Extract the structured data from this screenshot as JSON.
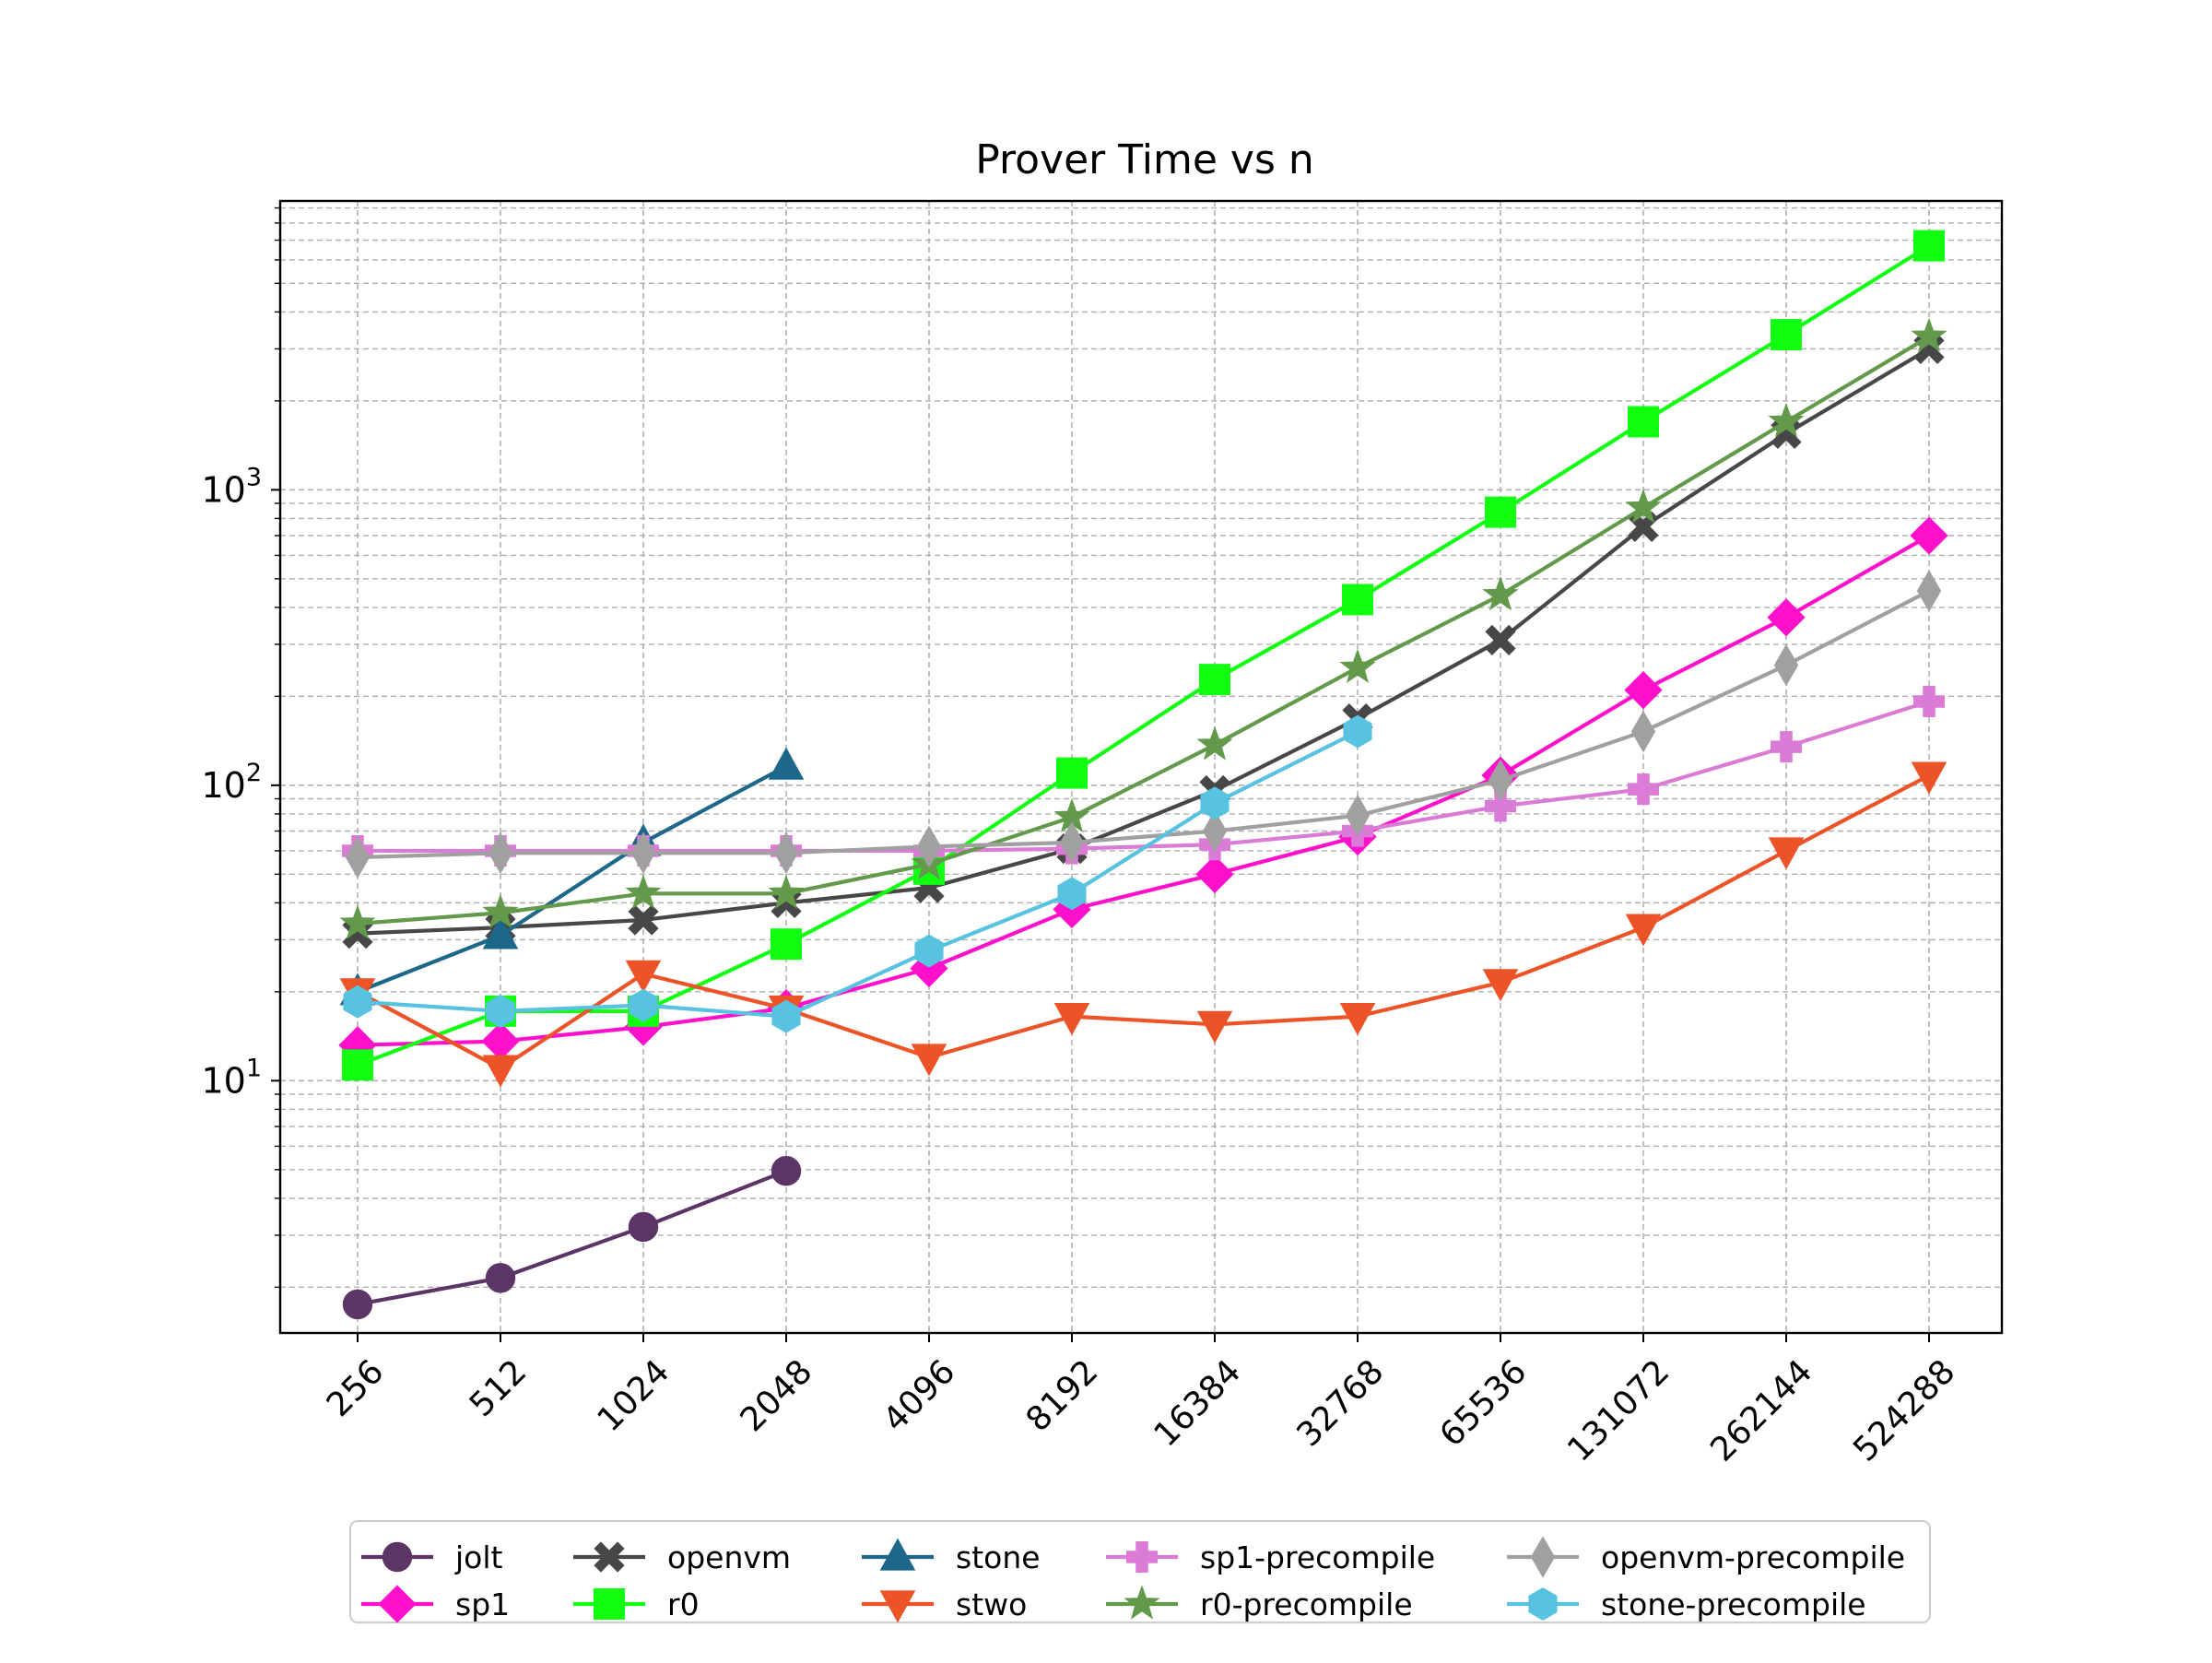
{
  "chart_data": {
    "type": "line",
    "title": "Prover Time vs n",
    "xlabel": "",
    "ylabel": "",
    "yscale": "log",
    "ylim": [
      1.4,
      9500
    ],
    "grid": true,
    "legend_location": "bottom-center, outside plot, 5 columns",
    "x": [
      "256",
      "512",
      "1024",
      "2048",
      "4096",
      "8192",
      "16384",
      "32768",
      "65536",
      "131072",
      "262144",
      "524288"
    ],
    "y_tick_labels": [
      {
        "value": 10,
        "base": "10",
        "exp": "1"
      },
      {
        "value": 100,
        "base": "10",
        "exp": "2"
      },
      {
        "value": 1000,
        "base": "10",
        "exp": "3"
      }
    ],
    "series": [
      {
        "name": "jolt",
        "color": "#5c3566",
        "marker": "circle",
        "values": [
          1.75,
          2.15,
          3.2,
          4.95,
          null,
          null,
          null,
          null,
          null,
          null,
          null,
          null
        ]
      },
      {
        "name": "sp1",
        "color": "#ff11cc",
        "marker": "diamond",
        "values": [
          13.2,
          13.6,
          15.2,
          17.6,
          24,
          38,
          50,
          67,
          108,
          210,
          370,
          700
        ]
      },
      {
        "name": "openvm",
        "color": "#474747",
        "marker": "x",
        "values": [
          31.5,
          33,
          35,
          40,
          45,
          61,
          96,
          168,
          310,
          750,
          1550,
          3000
        ]
      },
      {
        "name": "r0",
        "color": "#11ff11",
        "marker": "square",
        "values": [
          11.3,
          17.2,
          17.2,
          29,
          52,
          110,
          228,
          425,
          840,
          1700,
          3350,
          6700
        ]
      },
      {
        "name": "stone",
        "color": "#1c678a",
        "marker": "triangle-up",
        "values": [
          20,
          31,
          64,
          116,
          null,
          null,
          null,
          null,
          null,
          null,
          null,
          null
        ]
      },
      {
        "name": "stwo",
        "color": "#ec5428",
        "marker": "triangle-down",
        "values": [
          20,
          11,
          23,
          17.5,
          12,
          16.5,
          15.5,
          16.5,
          21.5,
          33,
          60,
          108
        ]
      },
      {
        "name": "sp1-precompile",
        "color": "#da7cd5",
        "marker": "plus",
        "values": [
          60,
          60,
          60,
          60,
          60,
          61,
          63,
          70,
          85,
          97,
          135,
          192
        ]
      },
      {
        "name": "r0-precompile",
        "color": "#62994a",
        "marker": "star",
        "values": [
          34,
          37,
          43,
          43,
          54,
          78,
          137,
          250,
          440,
          870,
          1700,
          3300
        ]
      },
      {
        "name": "openvm-precompile",
        "color": "#a0a0a0",
        "marker": "thin-diamond",
        "values": [
          57,
          59,
          59,
          59,
          62,
          64,
          70,
          79,
          104,
          152,
          255,
          455
        ]
      },
      {
        "name": "stone-precompile",
        "color": "#58c3e0",
        "marker": "hexagon",
        "values": [
          18.5,
          17.2,
          18,
          16.5,
          27.5,
          43,
          87,
          152,
          null,
          null,
          null,
          null
        ]
      }
    ],
    "legend_order": [
      "jolt",
      "sp1",
      "openvm",
      "r0",
      "stone",
      "stwo",
      "sp1-precompile",
      "r0-precompile",
      "openvm-precompile",
      "stone-precompile"
    ]
  }
}
